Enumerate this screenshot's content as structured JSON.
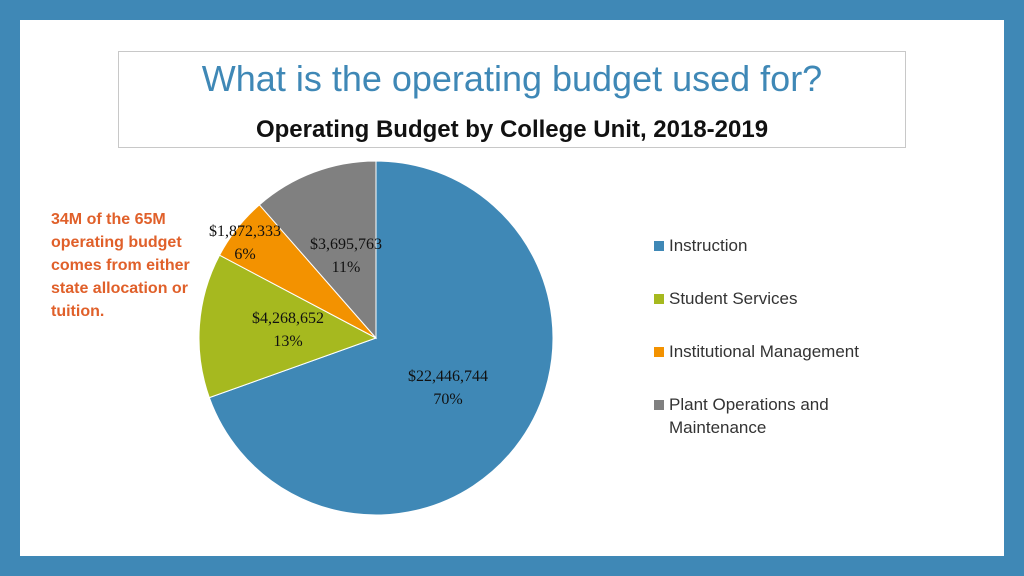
{
  "header": {
    "title": "What is the operating budget used for?",
    "chart_title": "Operating Budget by College Unit, 2018-2019"
  },
  "note": {
    "text": "34M of the 65M operating budget comes from either state allocation or tuition."
  },
  "colors": {
    "background": "#3f88b6",
    "title": "#3f88b6",
    "note": "#e0602a"
  },
  "chart_data": {
    "type": "pie",
    "title": "Operating Budget by College Unit, 2018-2019",
    "legend_position": "right",
    "slices": [
      {
        "label": "Instruction",
        "value": 22446744,
        "value_label": "$22,446,744",
        "percent_label": "70%",
        "color": "#3f88b6"
      },
      {
        "label": "Student Services",
        "value": 4268652,
        "value_label": "$4,268,652",
        "percent_label": "13%",
        "color": "#a6b91f"
      },
      {
        "label": "Institutional Management",
        "value": 1872333,
        "value_label": "$1,872,333",
        "percent_label": "6%",
        "color": "#f39200"
      },
      {
        "label": "Plant Operations and Maintenance",
        "value": 3695763,
        "value_label": "$3,695,763",
        "percent_label": "11%",
        "color": "#808080"
      }
    ]
  }
}
